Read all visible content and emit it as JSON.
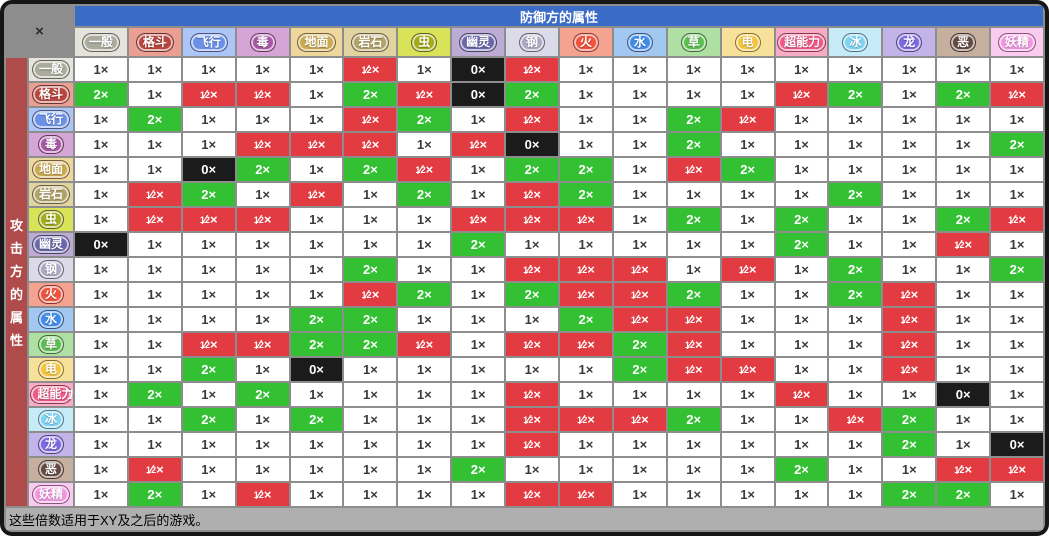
{
  "window": {
    "close_label": "×",
    "title": "防御方的属性",
    "attacker_label": "攻击方的属性",
    "footer_note": "这些倍数适用于XY及之后的游戏。"
  },
  "colors": {
    "title_bar": "#3A6BC6",
    "window_bg": "#8D8D8D",
    "footer_bg": "#AFAFAF",
    "attack_strip": "#B04B4B",
    "multiplier": {
      "x1_bg": "#FFFFFF",
      "x2_bg": "#33C033",
      "half_bg": "#E23B41",
      "x0_bg": "#1B1B1B"
    }
  },
  "types": [
    {
      "name": "一般",
      "pill": "#A9AB9B",
      "bg": "#E4E4DC"
    },
    {
      "name": "格斗",
      "pill": "#B8453E",
      "bg": "#E9A093"
    },
    {
      "name": "飞行",
      "pill": "#6B90E8",
      "bg": "#ABC6F6"
    },
    {
      "name": "毒",
      "pill": "#A557A5",
      "bg": "#D4A5D6"
    },
    {
      "name": "地面",
      "pill": "#CCA94F",
      "bg": "#EDD79C"
    },
    {
      "name": "岩石",
      "pill": "#B3A266",
      "bg": "#E0D4A0"
    },
    {
      "name": "虫",
      "pill": "#A2AD17",
      "bg": "#D9E359"
    },
    {
      "name": "幽灵",
      "pill": "#6A67AE",
      "bg": "#BCABD3"
    },
    {
      "name": "钢",
      "pill": "#ABA9C5",
      "bg": "#DBDAE9"
    },
    {
      "name": "火",
      "pill": "#F0523C",
      "bg": "#F3A390"
    },
    {
      "name": "水",
      "pill": "#3F8CEA",
      "bg": "#A2C8F1"
    },
    {
      "name": "草",
      "pill": "#5CBE50",
      "bg": "#ADE0A2"
    },
    {
      "name": "电",
      "pill": "#F4C53E",
      "bg": "#F7E19A"
    },
    {
      "name": "超能力",
      "pill": "#F25788",
      "bg": "#F8ABC4"
    },
    {
      "name": "冰",
      "pill": "#7ED4F4",
      "bg": "#C6EAF8"
    },
    {
      "name": "龙",
      "pill": "#7B68E2",
      "bg": "#C2B3E9"
    },
    {
      "name": "恶",
      "pill": "#654A41",
      "bg": "#C6AF9F"
    },
    {
      "name": "妖精",
      "pill": "#F495E3",
      "bg": "#F9CBEF"
    }
  ],
  "chart_data": {
    "type": "heatmap",
    "title": "防御方的属性",
    "row_axis_label": "攻击方的属性",
    "note": "这些倍数适用于XY及之后的游戏。",
    "columns": [
      "一般",
      "格斗",
      "飞行",
      "毒",
      "地面",
      "岩石",
      "虫",
      "幽灵",
      "钢",
      "火",
      "水",
      "草",
      "电",
      "超能力",
      "冰",
      "龙",
      "恶",
      "妖精"
    ],
    "rows": [
      "一般",
      "格斗",
      "飞行",
      "毒",
      "地面",
      "岩石",
      "虫",
      "幽灵",
      "钢",
      "火",
      "水",
      "草",
      "电",
      "超能力",
      "冰",
      "龙",
      "恶",
      "妖精"
    ],
    "legend": {
      "1": "white",
      "2": "green",
      "1/2": "red",
      "0": "black"
    },
    "matrix": [
      [
        "1",
        "1",
        "1",
        "1",
        "1",
        "1/2",
        "1",
        "0",
        "1/2",
        "1",
        "1",
        "1",
        "1",
        "1",
        "1",
        "1",
        "1",
        "1"
      ],
      [
        "2",
        "1",
        "1/2",
        "1/2",
        "1",
        "2",
        "1/2",
        "0",
        "2",
        "1",
        "1",
        "1",
        "1",
        "1/2",
        "2",
        "1",
        "2",
        "1/2"
      ],
      [
        "1",
        "2",
        "1",
        "1",
        "1",
        "1/2",
        "2",
        "1",
        "1/2",
        "1",
        "1",
        "2",
        "1/2",
        "1",
        "1",
        "1",
        "1",
        "1"
      ],
      [
        "1",
        "1",
        "1",
        "1/2",
        "1/2",
        "1/2",
        "1",
        "1/2",
        "0",
        "1",
        "1",
        "2",
        "1",
        "1",
        "1",
        "1",
        "1",
        "2"
      ],
      [
        "1",
        "1",
        "0",
        "2",
        "1",
        "2",
        "1/2",
        "1",
        "2",
        "2",
        "1",
        "1/2",
        "2",
        "1",
        "1",
        "1",
        "1",
        "1"
      ],
      [
        "1",
        "1/2",
        "2",
        "1",
        "1/2",
        "1",
        "2",
        "1",
        "1/2",
        "2",
        "1",
        "1",
        "1",
        "1",
        "2",
        "1",
        "1",
        "1"
      ],
      [
        "1",
        "1/2",
        "1/2",
        "1/2",
        "1",
        "1",
        "1",
        "1/2",
        "1/2",
        "1/2",
        "1",
        "2",
        "1",
        "2",
        "1",
        "1",
        "2",
        "1/2"
      ],
      [
        "0",
        "1",
        "1",
        "1",
        "1",
        "1",
        "1",
        "2",
        "1",
        "1",
        "1",
        "1",
        "1",
        "2",
        "1",
        "1",
        "1/2",
        "1"
      ],
      [
        "1",
        "1",
        "1",
        "1",
        "1",
        "2",
        "1",
        "1",
        "1/2",
        "1/2",
        "1/2",
        "1",
        "1/2",
        "1",
        "2",
        "1",
        "1",
        "2"
      ],
      [
        "1",
        "1",
        "1",
        "1",
        "1",
        "1/2",
        "2",
        "1",
        "2",
        "1/2",
        "1/2",
        "2",
        "1",
        "1",
        "2",
        "1/2",
        "1",
        "1"
      ],
      [
        "1",
        "1",
        "1",
        "1",
        "2",
        "2",
        "1",
        "1",
        "1",
        "2",
        "1/2",
        "1/2",
        "1",
        "1",
        "1",
        "1/2",
        "1",
        "1"
      ],
      [
        "1",
        "1",
        "1/2",
        "1/2",
        "2",
        "2",
        "1/2",
        "1",
        "1/2",
        "1/2",
        "2",
        "1/2",
        "1",
        "1",
        "1",
        "1/2",
        "1",
        "1"
      ],
      [
        "1",
        "1",
        "2",
        "1",
        "0",
        "1",
        "1",
        "1",
        "1",
        "1",
        "2",
        "1/2",
        "1/2",
        "1",
        "1",
        "1/2",
        "1",
        "1"
      ],
      [
        "1",
        "2",
        "1",
        "2",
        "1",
        "1",
        "1",
        "1",
        "1/2",
        "1",
        "1",
        "1",
        "1",
        "1/2",
        "1",
        "1",
        "0",
        "1"
      ],
      [
        "1",
        "1",
        "2",
        "1",
        "2",
        "1",
        "1",
        "1",
        "1/2",
        "1/2",
        "1/2",
        "2",
        "1",
        "1",
        "1/2",
        "2",
        "1",
        "1"
      ],
      [
        "1",
        "1",
        "1",
        "1",
        "1",
        "1",
        "1",
        "1",
        "1/2",
        "1",
        "1",
        "1",
        "1",
        "1",
        "1",
        "2",
        "1",
        "0"
      ],
      [
        "1",
        "1/2",
        "1",
        "1",
        "1",
        "1",
        "1",
        "2",
        "1",
        "1",
        "1",
        "1",
        "1",
        "2",
        "1",
        "1",
        "1/2",
        "1/2"
      ],
      [
        "1",
        "2",
        "1",
        "1/2",
        "1",
        "1",
        "1",
        "1",
        "1/2",
        "1/2",
        "1",
        "1",
        "1",
        "1",
        "1",
        "2",
        "2",
        "1"
      ]
    ]
  }
}
